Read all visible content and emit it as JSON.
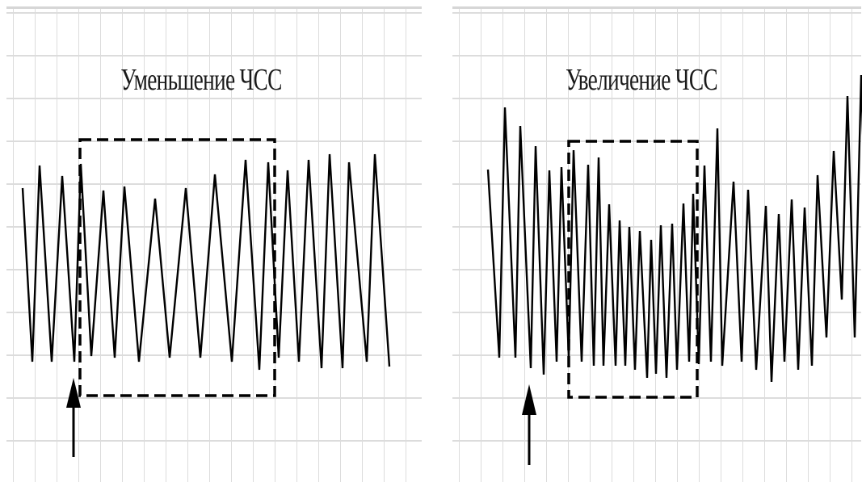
{
  "panels": [
    {
      "id": "left",
      "title": "Уменьшение ЧСС"
    },
    {
      "id": "right",
      "title": "Увеличение ЧСС"
    }
  ]
}
